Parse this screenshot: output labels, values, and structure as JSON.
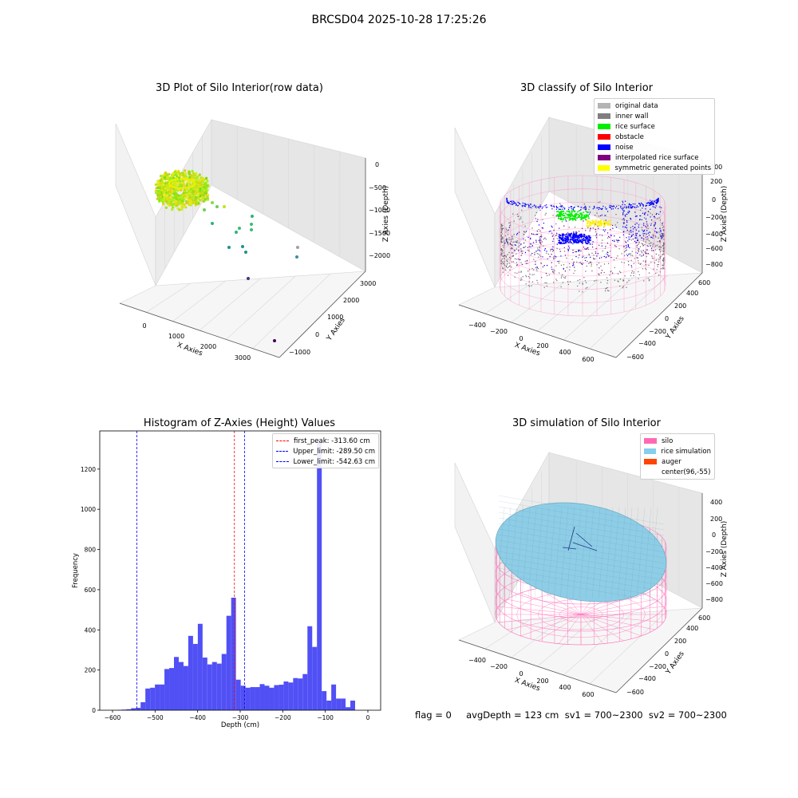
{
  "suptitle": "BRCSD04 2025-10-28 17:25:26",
  "status_line": "flag = 0     avgDepth = 123 cm  sv1 = 700~2300  sv2 = 700~2300",
  "chart_data": [
    {
      "type": "scatter",
      "title": "3D Plot of Silo Interior(row data)",
      "xlabel": "X Axies",
      "ylabel": "Y Axies",
      "zlabel": "Z Axies (Depth)",
      "x_ticks": [
        "0",
        "1000",
        "2000",
        "3000"
      ],
      "y_ticks": [
        "−1000",
        "0",
        "1000",
        "2000",
        "3000"
      ],
      "z_ticks": [
        "0",
        "−500",
        "−1000",
        "−1500",
        "−2000"
      ]
    },
    {
      "type": "scatter",
      "title": "3D classify of Silo Interior",
      "xlabel": "X Axies",
      "ylabel": "Y Axies",
      "zlabel": "Z Axies (Depth)",
      "x_ticks": [
        "−400",
        "−200",
        "0",
        "200",
        "400",
        "600"
      ],
      "y_ticks": [
        "−600",
        "−400",
        "−200",
        "0",
        "200",
        "400",
        "600"
      ],
      "z_ticks": [
        "200",
        "0",
        "−200",
        "−400",
        "−600",
        "−800"
      ],
      "legend_position": "top-right",
      "legend": [
        {
          "label": "original data",
          "color": "#b4b4b4"
        },
        {
          "label": "inner wall",
          "color": "#7f7f7f"
        },
        {
          "label": "rice surface",
          "color": "#00ee00"
        },
        {
          "label": "obstacle",
          "color": "#ff0000"
        },
        {
          "label": "noise",
          "color": "#0000ff"
        },
        {
          "label": "interpolated rice surface",
          "color": "#800080"
        },
        {
          "label": "symmetric generated points",
          "color": "#ffff00"
        }
      ]
    },
    {
      "type": "bar",
      "title": "Histogram of Z-Axies (Height) Values",
      "xlabel": "Depth (cm)",
      "ylabel": "Frequency",
      "xlim": [
        -630,
        30
      ],
      "ylim": [
        0,
        1390
      ],
      "x_ticks": [
        -600,
        -500,
        -400,
        -300,
        -200,
        -100,
        0
      ],
      "y_ticks": [
        0,
        200,
        400,
        600,
        800,
        1000,
        1200
      ],
      "bin_width": 11.2,
      "bin_start": -590,
      "values": [
        2,
        3,
        5,
        10,
        12,
        40,
        108,
        112,
        128,
        128,
        205,
        210,
        265,
        240,
        220,
        370,
        330,
        430,
        262,
        228,
        240,
        232,
        280,
        470,
        560,
        152,
        122,
        112,
        115,
        115,
        130,
        122,
        112,
        125,
        127,
        143,
        138,
        160,
        158,
        180,
        418,
        315,
        1330,
        95,
        48,
        128,
        58,
        58,
        15,
        48
      ],
      "bar_color": "#4a4af5",
      "lines": [
        {
          "label": "first_peak: -313.60 cm",
          "x": -313.6,
          "color": "#ff0000"
        },
        {
          "label": "Upper_limit: -289.50 cm",
          "x": -289.5,
          "color": "#0000ff"
        },
        {
          "label": "Lower_limit: -542.63 cm",
          "x": -542.63,
          "color": "#0000ff"
        }
      ],
      "legend_position": "top-right"
    },
    {
      "type": "scatter",
      "title": "3D simulation of Silo Interior",
      "xlabel": "X Axies",
      "ylabel": "Y Axies",
      "zlabel": "Z Axies (Depth)",
      "x_ticks": [
        "−400",
        "−200",
        "0",
        "200",
        "400",
        "600"
      ],
      "y_ticks": [
        "−600",
        "−400",
        "−200",
        "0",
        "200",
        "400",
        "600"
      ],
      "z_ticks": [
        "400",
        "200",
        "0",
        "−200",
        "−400",
        "−600",
        "−800"
      ],
      "legend_position": "top-right",
      "legend": [
        {
          "label": "silo",
          "color": "#ff69b4"
        },
        {
          "label": "rice simulation",
          "color": "#87ceeb"
        },
        {
          "label": "auger",
          "color": "#ff4500"
        },
        {
          "label": "center(96,-55)",
          "color": "#ffffff"
        }
      ]
    }
  ]
}
